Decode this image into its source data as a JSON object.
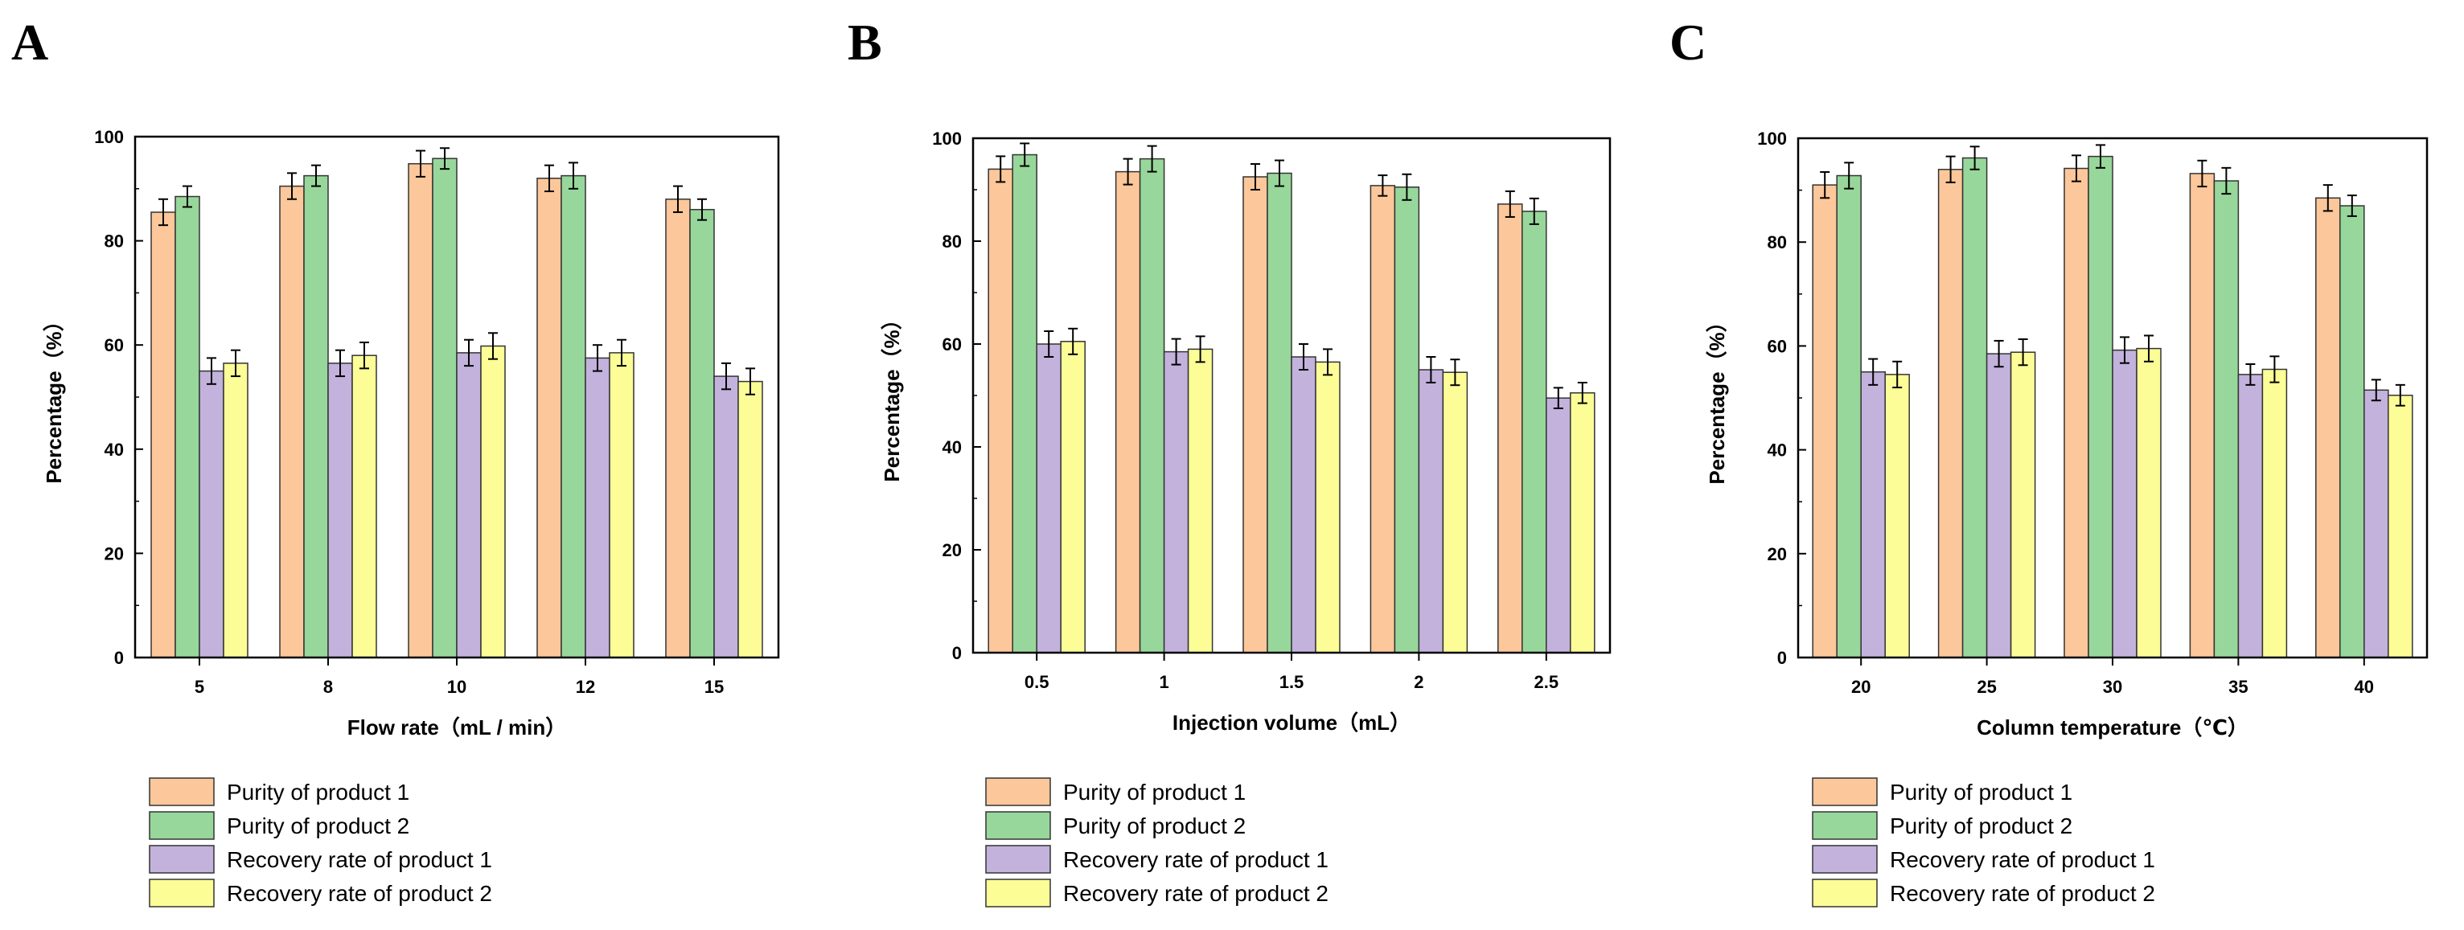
{
  "colors": {
    "purity1": "#fcc79a",
    "purity2": "#98d79b",
    "recovery1": "#c2b2dc",
    "recovery2": "#fdfd98",
    "stroke": "#333333"
  },
  "legend": [
    {
      "key": "purity1",
      "label": "Purity of product 1"
    },
    {
      "key": "purity2",
      "label": "Purity of product 2"
    },
    {
      "key": "recovery1",
      "label": "Recovery rate of product 1"
    },
    {
      "key": "recovery2",
      "label": "Recovery rate of product 2"
    }
  ],
  "chart_data": [
    {
      "panel": "A",
      "type": "bar",
      "xlabel": "Flow rate（mL / min）",
      "ylabel": "Percentage（%）",
      "ylim": [
        0,
        100
      ],
      "yticks": [
        0,
        20,
        40,
        60,
        80,
        100
      ],
      "categories": [
        "5",
        "8",
        "10",
        "12",
        "15"
      ],
      "series": [
        {
          "key": "purity1",
          "name": "Purity of product 1",
          "values": [
            85.5,
            90.5,
            94.8,
            92.0,
            88.0
          ],
          "errors": [
            2.5,
            2.5,
            2.5,
            2.5,
            2.5
          ]
        },
        {
          "key": "purity2",
          "name": "Purity of product 2",
          "values": [
            88.5,
            92.5,
            95.8,
            92.5,
            86.0
          ],
          "errors": [
            2.0,
            2.0,
            2.0,
            2.5,
            2.0
          ]
        },
        {
          "key": "recovery1",
          "name": "Recovery rate of product 1",
          "values": [
            55.0,
            56.5,
            58.5,
            57.5,
            54.0
          ],
          "errors": [
            2.5,
            2.5,
            2.5,
            2.5,
            2.5
          ]
        },
        {
          "key": "recovery2",
          "name": "Recovery rate of product 2",
          "values": [
            56.5,
            58.0,
            59.8,
            58.5,
            53.0
          ],
          "errors": [
            2.5,
            2.5,
            2.5,
            2.5,
            2.5
          ]
        }
      ]
    },
    {
      "panel": "B",
      "type": "bar",
      "xlabel": "Injection volume（mL）",
      "ylabel": "Percentage（%）",
      "ylim": [
        0,
        100
      ],
      "yticks": [
        0,
        20,
        40,
        60,
        80,
        100
      ],
      "categories": [
        "0.5",
        "1",
        "1.5",
        "2",
        "2.5"
      ],
      "series": [
        {
          "key": "purity1",
          "name": "Purity of product 1",
          "values": [
            94.0,
            93.5,
            92.5,
            90.8,
            87.2
          ],
          "errors": [
            2.5,
            2.5,
            2.5,
            2.0,
            2.5
          ]
        },
        {
          "key": "purity2",
          "name": "Purity of product 2",
          "values": [
            96.8,
            96.0,
            93.2,
            90.5,
            85.8
          ],
          "errors": [
            2.2,
            2.5,
            2.5,
            2.5,
            2.5
          ]
        },
        {
          "key": "recovery1",
          "name": "Recovery rate of product 1",
          "values": [
            60.0,
            58.5,
            57.5,
            55.0,
            49.5
          ],
          "errors": [
            2.5,
            2.5,
            2.5,
            2.5,
            2.0
          ]
        },
        {
          "key": "recovery2",
          "name": "Recovery rate of product 2",
          "values": [
            60.5,
            59.0,
            56.5,
            54.5,
            50.5
          ],
          "errors": [
            2.5,
            2.5,
            2.5,
            2.5,
            2.0
          ]
        }
      ]
    },
    {
      "panel": "C",
      "type": "bar",
      "xlabel": "Column temperature（℃）",
      "ylabel": "Percentage（%）",
      "ylim": [
        0,
        100
      ],
      "yticks": [
        0,
        20,
        40,
        60,
        80,
        100
      ],
      "categories": [
        "20",
        "25",
        "30",
        "35",
        "40"
      ],
      "series": [
        {
          "key": "purity1",
          "name": "Purity of product 1",
          "values": [
            91.0,
            94.0,
            94.2,
            93.2,
            88.5
          ],
          "errors": [
            2.5,
            2.5,
            2.5,
            2.5,
            2.5
          ]
        },
        {
          "key": "purity2",
          "name": "Purity of product 2",
          "values": [
            92.8,
            96.2,
            96.5,
            91.8,
            87.0
          ],
          "errors": [
            2.5,
            2.2,
            2.2,
            2.5,
            2.0
          ]
        },
        {
          "key": "recovery1",
          "name": "Recovery rate of product 1",
          "values": [
            55.0,
            58.5,
            59.2,
            54.5,
            51.5
          ],
          "errors": [
            2.5,
            2.5,
            2.5,
            2.0,
            2.0
          ]
        },
        {
          "key": "recovery2",
          "name": "Recovery rate of product 2",
          "values": [
            54.5,
            58.8,
            59.5,
            55.5,
            50.5
          ],
          "errors": [
            2.5,
            2.5,
            2.5,
            2.5,
            2.0
          ]
        }
      ]
    }
  ]
}
